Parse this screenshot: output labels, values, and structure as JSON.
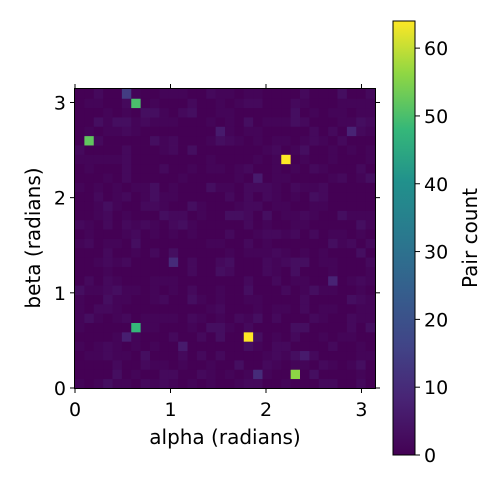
{
  "chart_data": {
    "type": "heatmap",
    "xlabel": "alpha (radians)",
    "ylabel": "beta (radians)",
    "xlim": [
      0,
      3.1416
    ],
    "ylim": [
      0,
      3.1416
    ],
    "xticks": [
      0,
      1,
      2,
      3
    ],
    "yticks": [
      0,
      1,
      2,
      3
    ],
    "xtick_labels": [
      "0",
      "1",
      "2",
      "3"
    ],
    "ytick_labels": [
      "0",
      "1",
      "2",
      "3"
    ],
    "grid_size": [
      32,
      32
    ],
    "colormap": "viridis",
    "colorbar": {
      "label": "Pair count",
      "min": 0,
      "max": 64,
      "ticks": [
        0,
        10,
        20,
        30,
        40,
        50,
        60
      ],
      "tick_labels": [
        "0",
        "10",
        "20",
        "30",
        "40",
        "50",
        "60"
      ]
    },
    "background_level": 1,
    "hotspots": [
      {
        "alpha": 0.687,
        "beta": 2.994,
        "count": 50
      },
      {
        "alpha": 0.196,
        "beta": 2.601,
        "count": 52
      },
      {
        "alpha": 2.209,
        "beta": 2.454,
        "count": 64
      },
      {
        "alpha": 0.687,
        "beta": 0.687,
        "count": 48
      },
      {
        "alpha": 1.816,
        "beta": 0.589,
        "count": 64
      },
      {
        "alpha": 2.307,
        "beta": 0.196,
        "count": 56
      },
      {
        "alpha": 0.589,
        "beta": 3.092,
        "count": 14
      },
      {
        "alpha": 0.982,
        "beta": 1.325,
        "count": 10
      },
      {
        "alpha": 1.914,
        "beta": 0.196,
        "count": 10
      },
      {
        "alpha": 2.896,
        "beta": 2.699,
        "count": 8
      },
      {
        "alpha": 2.7,
        "beta": 1.178,
        "count": 8
      },
      {
        "alpha": 1.914,
        "beta": 2.209,
        "count": 6
      },
      {
        "alpha": 0.491,
        "beta": 0.589,
        "count": 7
      },
      {
        "alpha": 1.129,
        "beta": 0.442,
        "count": 6
      },
      {
        "alpha": 2.454,
        "beta": 0.392,
        "count": 6
      },
      {
        "alpha": 1.473,
        "beta": 2.699,
        "count": 6
      }
    ]
  }
}
